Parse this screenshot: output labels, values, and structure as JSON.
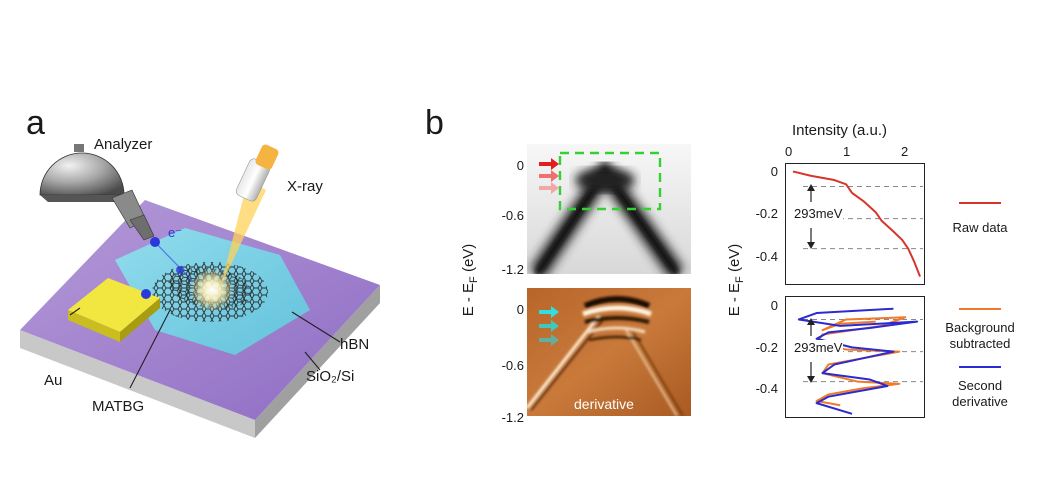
{
  "panel_a": {
    "letter": "a",
    "labels": {
      "analyzer": "Analyzer",
      "xray": "X-ray",
      "electron": "e⁻",
      "au": "Au",
      "matbg": "MATBG",
      "hbn": "hBN",
      "substrate": "SiO₂/Si"
    }
  },
  "panel_b": {
    "letter": "b",
    "left_ylabel": "E - E_F (eV)",
    "left_ylabel_main": "E - E",
    "left_ylabel_sub": "F",
    "left_ylabel_unit": " (eV)",
    "top_map_ticks": [
      "0",
      "-0.6",
      "-1.2"
    ],
    "bottom_map_ticks": [
      "0",
      "-0.6",
      "-1.2"
    ],
    "bottom_map_label": "derivative",
    "right_xlabel": "Intensity (a.u.)",
    "right_xticks": [
      "0",
      "1",
      "2"
    ],
    "right_ylabel_main": "E - E",
    "right_ylabel_sub": "F",
    "right_ylabel_unit": " (eV)",
    "top_plot_yticks": [
      "0",
      "-0.2",
      "-0.4"
    ],
    "bottom_plot_yticks": [
      "0",
      "-0.2",
      "-0.4"
    ],
    "annotation_top": "293meV",
    "annotation_bottom": "293meV",
    "legend": {
      "raw": "Raw data",
      "bg_line1": "Background",
      "bg_line2": "subtracted",
      "sd_line1": "Second",
      "sd_line2": "derivative"
    },
    "colors": {
      "raw": "#d8352a",
      "background_subtracted": "#f07a2a",
      "second_derivative": "#2b2bd0",
      "roi_box": "#35d035"
    }
  },
  "chart_data": [
    {
      "type": "line",
      "series": [
        {
          "name": "Raw data",
          "x": [
            0.1,
            0.4,
            0.8,
            1.0,
            1.1,
            1.3,
            1.5,
            1.6,
            1.8,
            1.95,
            2.05,
            2.15,
            2.25
          ],
          "y": [
            0.02,
            0.0,
            -0.02,
            -0.04,
            -0.08,
            -0.12,
            -0.17,
            -0.21,
            -0.26,
            -0.3,
            -0.34,
            -0.4,
            -0.47
          ]
        }
      ],
      "xlabel": "Intensity (a.u.)",
      "ylabel": "E - E_F (eV)",
      "xlim": [
        0,
        2.3
      ],
      "ylim": [
        -0.5,
        0.05
      ],
      "dashed_levels": [
        -0.05,
        -0.2,
        -0.34
      ]
    },
    {
      "type": "line",
      "series": [
        {
          "name": "Background subtracted",
          "x": [
            1.5,
            0.9,
            0.6,
            1.0,
            2.0,
            1.6,
            0.6,
            0.5,
            1.0,
            1.9,
            1.5,
            0.7,
            0.6,
            1.2,
            1.9,
            1.3,
            0.7,
            0.5,
            0.9
          ],
          "y": [
            -0.06,
            -0.07,
            -0.1,
            -0.05,
            -0.04,
            -0.08,
            -0.12,
            -0.16,
            -0.19,
            -0.2,
            -0.22,
            -0.26,
            -0.3,
            -0.34,
            -0.35,
            -0.37,
            -0.4,
            -0.43,
            -0.45
          ]
        },
        {
          "name": "Second derivative",
          "x": [
            1.8,
            0.5,
            0.2,
            0.9,
            2.2,
            1.4,
            0.7,
            0.5,
            1.1,
            1.8,
            1.3,
            0.8,
            0.6,
            1.4,
            1.7,
            1.1,
            0.7,
            0.5,
            1.1
          ],
          "y": [
            0.0,
            -0.02,
            -0.05,
            -0.08,
            -0.06,
            -0.09,
            -0.11,
            -0.14,
            -0.18,
            -0.2,
            -0.23,
            -0.26,
            -0.3,
            -0.33,
            -0.36,
            -0.39,
            -0.41,
            -0.44,
            -0.49
          ]
        }
      ],
      "xlim": [
        0,
        2.3
      ],
      "ylim": [
        -0.5,
        0.05
      ],
      "dashed_levels": [
        -0.05,
        -0.2,
        -0.34
      ]
    }
  ]
}
